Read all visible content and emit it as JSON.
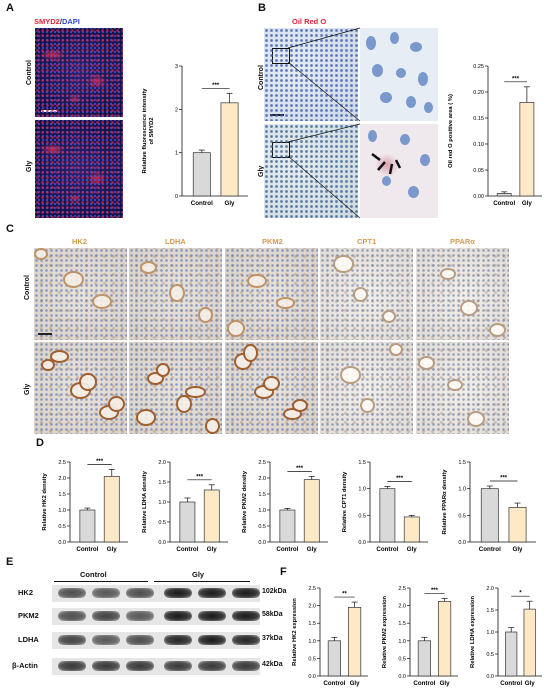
{
  "panels": {
    "A": "A",
    "B": "B",
    "C": "C",
    "D": "D",
    "E": "E",
    "F": "F"
  },
  "panelA": {
    "stain_red": "SMYD2",
    "stain_sep": "/",
    "stain_blue": "DAPI",
    "row_control": "Control",
    "row_gly": "Gly"
  },
  "panelB": {
    "stain": "Oil Red O",
    "row_control": "Control",
    "row_gly": "Gly"
  },
  "panelC": {
    "stains": [
      "HK2",
      "LDHA",
      "PKM2",
      "CPT1",
      "PPARα"
    ],
    "row_control": "Control",
    "row_gly": "Gly"
  },
  "panelE": {
    "group_control": "Control",
    "group_gly": "Gly",
    "proteins": [
      "HK2",
      "PKM2",
      "LDHA",
      "β-Actin"
    ],
    "sizes": [
      "102kDa",
      "58kDa",
      "37kDa",
      "42kDa"
    ],
    "band_intensity": [
      [
        0.75,
        0.7,
        0.75,
        1.0,
        1.0,
        1.0
      ],
      [
        0.75,
        0.8,
        0.7,
        1.0,
        1.0,
        1.0
      ],
      [
        0.8,
        0.7,
        0.75,
        0.95,
        1.0,
        0.95
      ],
      [
        0.85,
        0.85,
        0.85,
        0.85,
        0.85,
        0.85
      ]
    ]
  },
  "colors": {
    "control_bar": "#d9d9d9",
    "gly_bar": "#fde9c6",
    "bar_edge": "#333333"
  },
  "chart_data": [
    {
      "id": "A",
      "type": "bar",
      "categories": [
        "Control",
        "Gly"
      ],
      "values": [
        1.0,
        2.15
      ],
      "errors": [
        0.06,
        0.22
      ],
      "ylabel": "Relative fluorescence intensity of SMYD2",
      "ylabel_lines": [
        "Relative fluorescence intensity",
        "of SMYD2"
      ],
      "ylim": [
        0,
        3
      ],
      "yticks": [
        "0",
        "1",
        "2",
        "3"
      ],
      "sig": "***"
    },
    {
      "id": "B",
      "type": "bar",
      "categories": [
        "Control",
        "Gly"
      ],
      "values": [
        0.005,
        0.18
      ],
      "errors": [
        0.003,
        0.03
      ],
      "ylabel": "Oil red O positive  area ( %)",
      "ylabel_lines": [
        "Oil red O positive  area ( %)"
      ],
      "ylim": [
        0,
        0.25
      ],
      "yticks": [
        "0.00",
        "0.05",
        "0.10",
        "0.15",
        "0.20",
        "0.25"
      ],
      "sig": "***"
    },
    {
      "id": "D1",
      "type": "bar",
      "categories": [
        "Control",
        "Gly"
      ],
      "values": [
        1.0,
        2.05
      ],
      "errors": [
        0.06,
        0.22
      ],
      "ylabel": "Relative HK2 density",
      "ylim": [
        0,
        2.5
      ],
      "yticks": [
        "0.0",
        "0.5",
        "1.0",
        "1.5",
        "2.0",
        "2.5"
      ],
      "sig": "***"
    },
    {
      "id": "D2",
      "type": "bar",
      "categories": [
        "Control",
        "Gly"
      ],
      "values": [
        1.0,
        1.3
      ],
      "errors": [
        0.1,
        0.13
      ],
      "ylabel": "Relative LDHA density",
      "ylim": [
        0,
        2.0
      ],
      "yticks": [
        "0.0",
        "0.5",
        "1.0",
        "1.5",
        "2.0"
      ],
      "sig": "***"
    },
    {
      "id": "D3",
      "type": "bar",
      "categories": [
        "Control",
        "Gly"
      ],
      "values": [
        1.0,
        1.95
      ],
      "errors": [
        0.05,
        0.1
      ],
      "ylabel": "Relative PKM2 density",
      "ylim": [
        0,
        2.5
      ],
      "yticks": [
        "0.0",
        "0.5",
        "1.0",
        "1.5",
        "2.0",
        "2.5"
      ],
      "sig": "***"
    },
    {
      "id": "D4",
      "type": "bar",
      "categories": [
        "Control",
        "Gly"
      ],
      "values": [
        1.0,
        0.47
      ],
      "errors": [
        0.04,
        0.03
      ],
      "ylabel": "Relative CPT1 density",
      "ylim": [
        0,
        1.5
      ],
      "yticks": [
        "0.0",
        "0.5",
        "1.0",
        "1.5"
      ],
      "sig": "***"
    },
    {
      "id": "D5",
      "type": "bar",
      "categories": [
        "Control",
        "Gly"
      ],
      "values": [
        1.0,
        0.65
      ],
      "errors": [
        0.05,
        0.08
      ],
      "ylabel": "Relative PPARα density",
      "ylim": [
        0,
        1.5
      ],
      "yticks": [
        "0.0",
        "0.5",
        "1.0",
        "1.5"
      ],
      "sig": "***"
    },
    {
      "id": "F1",
      "type": "bar",
      "categories": [
        "Control",
        "Gly"
      ],
      "values": [
        1.0,
        1.95
      ],
      "errors": [
        0.1,
        0.15
      ],
      "ylabel": "Relative HK2 expression",
      "ylim": [
        0,
        2.5
      ],
      "yticks": [
        "0.0",
        "0.5",
        "1.0",
        "1.5",
        "2.0",
        "2.5"
      ],
      "sig": "**"
    },
    {
      "id": "F2",
      "type": "bar",
      "categories": [
        "Control",
        "Gly"
      ],
      "values": [
        1.0,
        2.12
      ],
      "errors": [
        0.1,
        0.08
      ],
      "ylabel": "Relative PKM2 expression",
      "ylim": [
        0,
        2.5
      ],
      "yticks": [
        "0.0",
        "0.5",
        "1.0",
        "1.5",
        "2.0",
        "2.5"
      ],
      "sig": "***"
    },
    {
      "id": "F3",
      "type": "bar",
      "categories": [
        "Control",
        "Gly"
      ],
      "values": [
        1.0,
        1.52
      ],
      "errors": [
        0.1,
        0.18
      ],
      "ylabel": "Relative LDHA expression",
      "ylim": [
        0,
        2.0
      ],
      "yticks": [
        "0.0",
        "0.5",
        "1.0",
        "1.5",
        "2.0"
      ],
      "sig": "*"
    }
  ]
}
